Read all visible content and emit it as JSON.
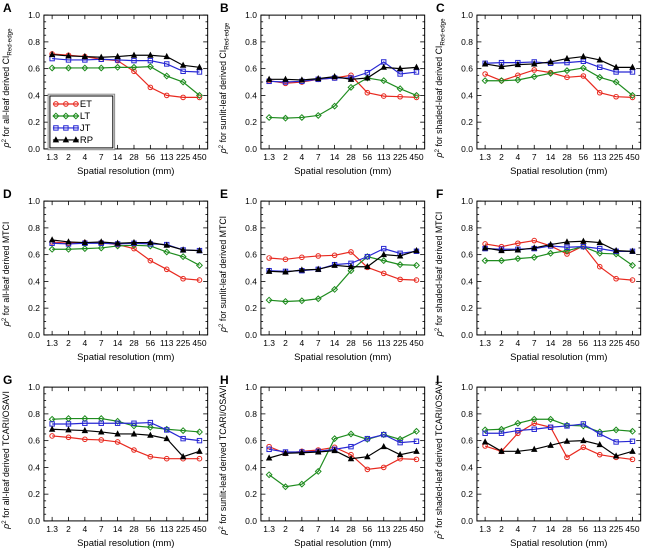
{
  "figure": {
    "background": "#ffffff",
    "xlabel": "Spatial resolution (mm)",
    "ytick_labels": [
      "0.0",
      "0.2",
      "0.4",
      "0.6",
      "0.8",
      "1.0"
    ],
    "legend_panel": "A"
  },
  "chart_data": {
    "type": "line",
    "x_categories": [
      "1.3",
      "2",
      "4",
      "7",
      "14",
      "28",
      "56",
      "113",
      "225",
      "450"
    ],
    "xlabel": "Spatial resolution (mm)",
    "ylim": [
      0.0,
      1.0
    ],
    "ytick_step": 0.2,
    "yminor_step": 0.05,
    "grid": "off",
    "legend_position": "lower-left-of-panel-A",
    "series_meta": [
      {
        "label": "ET",
        "color": "#e8291f",
        "marker": "circle"
      },
      {
        "label": "LT",
        "color": "#1f8c1f",
        "marker": "diamond"
      },
      {
        "label": "JT",
        "color": "#2727d3",
        "marker": "square"
      },
      {
        "label": "RP",
        "color": "#000000",
        "marker": "triangle"
      }
    ],
    "panels": [
      {
        "id": "A",
        "ylabel_pre": "for all-leaf derived",
        "index": "CI",
        "index_sub": "Red-edge",
        "show_legend": true,
        "series": [
          {
            "name": "ET",
            "values": [
              0.71,
              0.7,
              0.69,
              0.67,
              0.66,
              0.58,
              0.46,
              0.4,
              0.385,
              0.385
            ]
          },
          {
            "name": "LT",
            "values": [
              0.605,
              0.605,
              0.605,
              0.605,
              0.61,
              0.61,
              0.615,
              0.545,
              0.5,
              0.4
            ]
          },
          {
            "name": "JT",
            "values": [
              0.675,
              0.665,
              0.665,
              0.67,
              0.665,
              0.66,
              0.66,
              0.635,
              0.58,
              0.575
            ]
          },
          {
            "name": "RP",
            "values": [
              0.705,
              0.695,
              0.69,
              0.685,
              0.69,
              0.7,
              0.7,
              0.69,
              0.625,
              0.61
            ]
          }
        ]
      },
      {
        "id": "B",
        "ylabel_pre": "for sunlit-leaf derived",
        "index": "CI",
        "index_sub": "Red-edge",
        "show_legend": false,
        "series": [
          {
            "name": "ET",
            "values": [
              0.51,
              0.49,
              0.5,
              0.52,
              0.53,
              0.55,
              0.42,
              0.395,
              0.39,
              0.385
            ]
          },
          {
            "name": "LT",
            "values": [
              0.235,
              0.23,
              0.235,
              0.25,
              0.32,
              0.46,
              0.53,
              0.51,
              0.45,
              0.4
            ]
          },
          {
            "name": "JT",
            "values": [
              0.505,
              0.5,
              0.505,
              0.52,
              0.53,
              0.53,
              0.57,
              0.65,
              0.56,
              0.575
            ]
          },
          {
            "name": "RP",
            "values": [
              0.52,
              0.52,
              0.515,
              0.525,
              0.54,
              0.52,
              0.53,
              0.61,
              0.6,
              0.61
            ]
          }
        ]
      },
      {
        "id": "C",
        "ylabel_pre": "for shaded-leaf derived",
        "index": "CI",
        "index_sub": "Red-edge",
        "show_legend": false,
        "series": [
          {
            "name": "ET",
            "values": [
              0.56,
              0.51,
              0.55,
              0.59,
              0.57,
              0.535,
              0.545,
              0.42,
              0.39,
              0.385
            ]
          },
          {
            "name": "LT",
            "values": [
              0.51,
              0.51,
              0.515,
              0.54,
              0.565,
              0.585,
              0.605,
              0.535,
              0.5,
              0.4
            ]
          },
          {
            "name": "JT",
            "values": [
              0.64,
              0.645,
              0.645,
              0.65,
              0.64,
              0.645,
              0.655,
              0.61,
              0.575,
              0.575
            ]
          },
          {
            "name": "RP",
            "values": [
              0.635,
              0.615,
              0.63,
              0.635,
              0.65,
              0.675,
              0.69,
              0.665,
              0.61,
              0.61
            ]
          }
        ]
      },
      {
        "id": "D",
        "ylabel_pre": "for all-leaf derived",
        "index": "MTCI",
        "index_sub": "",
        "show_legend": false,
        "series": [
          {
            "name": "ET",
            "values": [
              0.695,
              0.685,
              0.69,
              0.69,
              0.675,
              0.645,
              0.555,
              0.49,
              0.42,
              0.41
            ]
          },
          {
            "name": "LT",
            "values": [
              0.64,
              0.64,
              0.645,
              0.65,
              0.665,
              0.67,
              0.665,
              0.62,
              0.585,
              0.52
            ]
          },
          {
            "name": "JT",
            "values": [
              0.685,
              0.68,
              0.685,
              0.685,
              0.68,
              0.685,
              0.68,
              0.675,
              0.635,
              0.63
            ]
          },
          {
            "name": "RP",
            "values": [
              0.71,
              0.695,
              0.69,
              0.695,
              0.685,
              0.69,
              0.69,
              0.67,
              0.635,
              0.63
            ]
          }
        ]
      },
      {
        "id": "E",
        "ylabel_pre": "for sunlit-leaf derived",
        "index": "MTCI",
        "index_sub": "",
        "show_legend": false,
        "series": [
          {
            "name": "ET",
            "values": [
              0.575,
              0.565,
              0.58,
              0.59,
              0.595,
              0.62,
              0.505,
              0.46,
              0.415,
              0.41
            ]
          },
          {
            "name": "LT",
            "values": [
              0.26,
              0.25,
              0.255,
              0.27,
              0.34,
              0.48,
              0.585,
              0.555,
              0.525,
              0.52
            ]
          },
          {
            "name": "JT",
            "values": [
              0.48,
              0.475,
              0.48,
              0.49,
              0.525,
              0.535,
              0.585,
              0.645,
              0.61,
              0.625
            ]
          },
          {
            "name": "RP",
            "values": [
              0.475,
              0.47,
              0.485,
              0.49,
              0.52,
              0.51,
              0.51,
              0.6,
              0.59,
              0.63
            ]
          }
        ]
      },
      {
        "id": "F",
        "ylabel_pre": "for shaded-leaf derived",
        "index": "MTCI",
        "index_sub": "",
        "show_legend": false,
        "series": [
          {
            "name": "ET",
            "values": [
              0.68,
              0.66,
              0.685,
              0.705,
              0.665,
              0.605,
              0.665,
              0.51,
              0.42,
              0.41
            ]
          },
          {
            "name": "LT",
            "values": [
              0.555,
              0.555,
              0.57,
              0.58,
              0.61,
              0.63,
              0.66,
              0.61,
              0.605,
              0.52
            ]
          },
          {
            "name": "JT",
            "values": [
              0.645,
              0.64,
              0.64,
              0.645,
              0.665,
              0.655,
              0.66,
              0.645,
              0.625,
              0.625
            ]
          },
          {
            "name": "RP",
            "values": [
              0.65,
              0.63,
              0.635,
              0.65,
              0.675,
              0.695,
              0.7,
              0.69,
              0.63,
              0.625
            ]
          }
        ]
      },
      {
        "id": "G",
        "ylabel_pre": "for all-leaf derived",
        "index": "TCARI/OSAVI",
        "index_sub": "",
        "show_legend": false,
        "series": [
          {
            "name": "ET",
            "values": [
              0.635,
              0.625,
              0.61,
              0.605,
              0.59,
              0.53,
              0.48,
              0.465,
              0.465,
              0.465
            ]
          },
          {
            "name": "LT",
            "values": [
              0.76,
              0.765,
              0.765,
              0.765,
              0.745,
              0.71,
              0.7,
              0.685,
              0.675,
              0.665
            ]
          },
          {
            "name": "JT",
            "values": [
              0.725,
              0.725,
              0.73,
              0.73,
              0.73,
              0.73,
              0.735,
              0.68,
              0.615,
              0.6
            ]
          },
          {
            "name": "RP",
            "values": [
              0.685,
              0.68,
              0.675,
              0.665,
              0.65,
              0.65,
              0.64,
              0.615,
              0.48,
              0.52
            ]
          }
        ]
      },
      {
        "id": "H",
        "ylabel_pre": "for sunlit-leaf derived",
        "index": "TCARI/OSAVI",
        "index_sub": "",
        "show_legend": false,
        "series": [
          {
            "name": "ET",
            "values": [
              0.555,
              0.505,
              0.52,
              0.53,
              0.55,
              0.495,
              0.385,
              0.4,
              0.465,
              0.46
            ]
          },
          {
            "name": "LT",
            "values": [
              0.345,
              0.255,
              0.275,
              0.37,
              0.615,
              0.65,
              0.61,
              0.645,
              0.61,
              0.67
            ]
          },
          {
            "name": "JT",
            "values": [
              0.535,
              0.515,
              0.515,
              0.52,
              0.535,
              0.555,
              0.615,
              0.645,
              0.585,
              0.595
            ]
          },
          {
            "name": "RP",
            "values": [
              0.47,
              0.505,
              0.51,
              0.515,
              0.525,
              0.465,
              0.48,
              0.555,
              0.495,
              0.52
            ]
          }
        ]
      },
      {
        "id": "I",
        "ylabel_pre": "for shaded-leaf derived",
        "index": "TCARI/OSAVI",
        "index_sub": "",
        "show_legend": false,
        "series": [
          {
            "name": "ET",
            "values": [
              0.56,
              0.52,
              0.655,
              0.73,
              0.7,
              0.475,
              0.55,
              0.495,
              0.475,
              0.46
            ]
          },
          {
            "name": "LT",
            "values": [
              0.68,
              0.685,
              0.73,
              0.76,
              0.76,
              0.715,
              0.71,
              0.665,
              0.68,
              0.67
            ]
          },
          {
            "name": "JT",
            "values": [
              0.655,
              0.655,
              0.675,
              0.685,
              0.7,
              0.71,
              0.725,
              0.65,
              0.59,
              0.595
            ]
          },
          {
            "name": "RP",
            "values": [
              0.59,
              0.52,
              0.52,
              0.535,
              0.565,
              0.595,
              0.6,
              0.57,
              0.485,
              0.52
            ]
          }
        ]
      }
    ]
  }
}
